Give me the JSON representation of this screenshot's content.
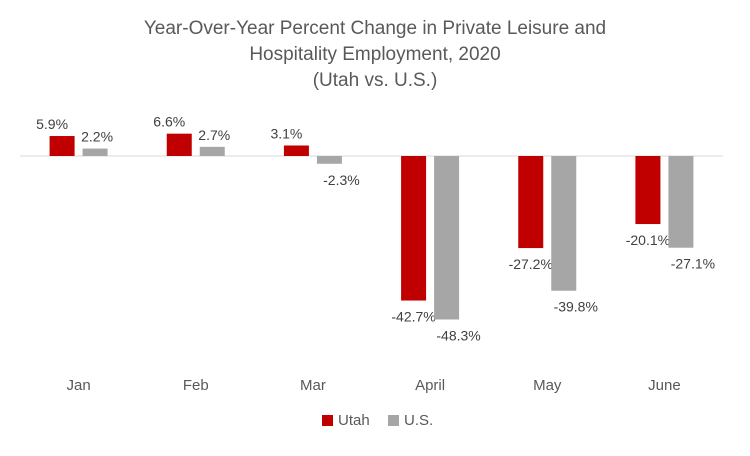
{
  "chart_data": {
    "type": "bar",
    "title": [
      "Year-Over-Year Percent Change in Private Leisure and",
      "Hospitality Employment, 2020",
      "(Utah vs. U.S.)"
    ],
    "categories": [
      "Jan",
      "Feb",
      "Mar",
      "April",
      "May",
      "June"
    ],
    "series": [
      {
        "name": "Utah",
        "color": "#c00000",
        "values": [
          5.9,
          6.6,
          3.1,
          -42.7,
          -27.2,
          -20.1
        ],
        "labels": [
          "5.9%",
          "6.6%",
          "3.1%",
          "-42.7%",
          "-27.2%",
          "-20.1%"
        ]
      },
      {
        "name": "U.S.",
        "color": "#a6a6a6",
        "values": [
          2.2,
          2.7,
          -2.3,
          -48.3,
          -39.8,
          -27.1
        ],
        "labels": [
          "2.2%",
          "2.7%",
          "-2.3%",
          "-48.3%",
          "-39.8%",
          "-27.1%"
        ]
      }
    ],
    "ylim": [
      -48.3,
      6.6
    ],
    "grid": false,
    "legend_position": "bottom"
  }
}
